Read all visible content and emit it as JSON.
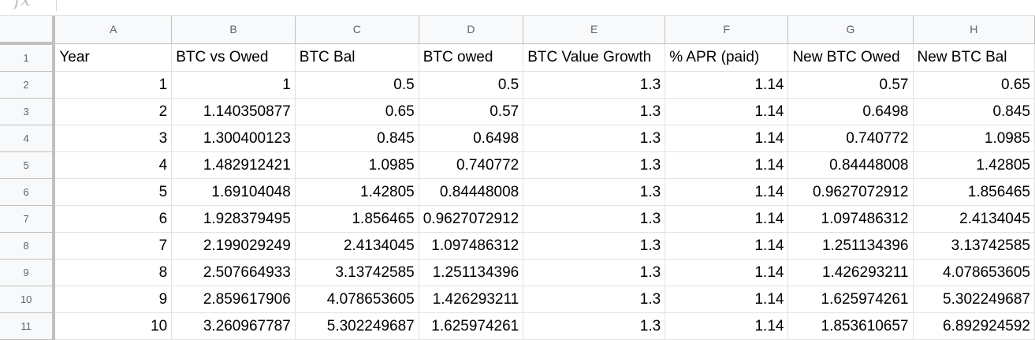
{
  "formula_bar": {
    "icon": "fx-icon",
    "label": "fx"
  },
  "columns": [
    "A",
    "B",
    "C",
    "D",
    "E",
    "F",
    "G",
    "H"
  ],
  "row_numbers": [
    "1",
    "2",
    "3",
    "4",
    "5",
    "6",
    "7",
    "8",
    "9",
    "10",
    "11"
  ],
  "headers": [
    "Year",
    "BTC vs Owed",
    "BTC Bal",
    "BTC owed",
    "BTC Value Growth",
    "% APR (paid)",
    "New BTC Owed",
    "New BTC Bal"
  ],
  "rows": [
    [
      "1",
      "1",
      "0.5",
      "0.5",
      "1.3",
      "1.14",
      "0.57",
      "0.65"
    ],
    [
      "2",
      "1.140350877",
      "0.65",
      "0.57",
      "1.3",
      "1.14",
      "0.6498",
      "0.845"
    ],
    [
      "3",
      "1.300400123",
      "0.845",
      "0.6498",
      "1.3",
      "1.14",
      "0.740772",
      "1.0985"
    ],
    [
      "4",
      "1.482912421",
      "1.0985",
      "0.740772",
      "1.3",
      "1.14",
      "0.84448008",
      "1.42805"
    ],
    [
      "5",
      "1.69104048",
      "1.42805",
      "0.84448008",
      "1.3",
      "1.14",
      "0.9627072912",
      "1.856465"
    ],
    [
      "6",
      "1.928379495",
      "1.856465",
      "0.9627072912",
      "1.3",
      "1.14",
      "1.097486312",
      "2.4134045"
    ],
    [
      "7",
      "2.199029249",
      "2.4134045",
      "1.097486312",
      "1.3",
      "1.14",
      "1.251134396",
      "3.13742585"
    ],
    [
      "8",
      "2.507664933",
      "3.13742585",
      "1.251134396",
      "1.3",
      "1.14",
      "1.426293211",
      "4.078653605"
    ],
    [
      "9",
      "2.859617906",
      "4.078653605",
      "1.426293211",
      "1.3",
      "1.14",
      "1.625974261",
      "5.302249687"
    ],
    [
      "10",
      "3.260967787",
      "5.302249687",
      "1.625974261",
      "1.3",
      "1.14",
      "1.853610657",
      "6.892924592"
    ]
  ]
}
